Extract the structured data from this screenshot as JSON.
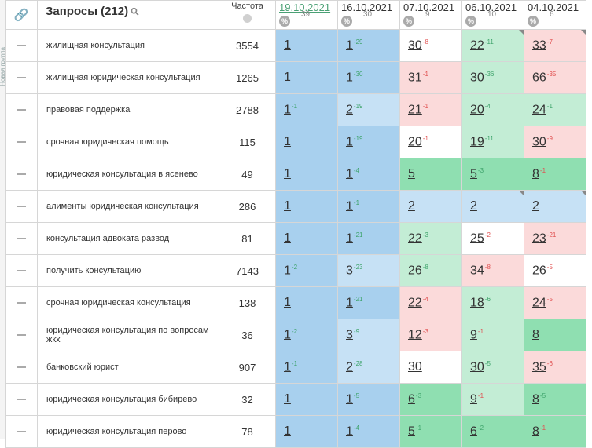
{
  "sidebar": {
    "label": "Новая группа"
  },
  "header": {
    "query_title": "Запросы",
    "query_count": "(212)",
    "freq_label": "Частота",
    "dates": [
      {
        "date": "19.10.2021",
        "count": "39",
        "active": true
      },
      {
        "date": "16.10.2021",
        "count": "30",
        "active": false
      },
      {
        "date": "07.10.2021",
        "count": "9",
        "active": false
      },
      {
        "date": "06.10.2021",
        "count": "10",
        "active": false
      },
      {
        "date": "04.10.2021",
        "count": "6",
        "active": false
      }
    ]
  },
  "colors": {
    "blue": "#a8d0ee",
    "light_blue": "#c6e1f5",
    "green": "#8fdfb1",
    "light_green": "#c3edd5",
    "pink": "#fbdada",
    "delta_up": "#3da36a",
    "delta_down": "#e05050"
  },
  "rows": [
    {
      "query": "жилищная консультация",
      "freq": "3554",
      "cells": [
        {
          "v": "1",
          "d": "",
          "dir": "",
          "bg": "blue",
          "corner": false
        },
        {
          "v": "1",
          "d": "-29",
          "dir": "up",
          "bg": "blue",
          "corner": false
        },
        {
          "v": "30",
          "d": "-8",
          "dir": "down",
          "bg": "white",
          "corner": false
        },
        {
          "v": "22",
          "d": "-11",
          "dir": "up",
          "bg": "lgreen",
          "corner": true
        },
        {
          "v": "33",
          "d": "-7",
          "dir": "down",
          "bg": "pink",
          "corner": true
        }
      ]
    },
    {
      "query": "жилищная юридическая консультация",
      "freq": "1265",
      "cells": [
        {
          "v": "1",
          "d": "",
          "dir": "",
          "bg": "blue",
          "corner": false
        },
        {
          "v": "1",
          "d": "-30",
          "dir": "up",
          "bg": "blue",
          "corner": false
        },
        {
          "v": "31",
          "d": "-1",
          "dir": "down",
          "bg": "pink",
          "corner": false
        },
        {
          "v": "30",
          "d": "-36",
          "dir": "up",
          "bg": "lgreen",
          "corner": false
        },
        {
          "v": "66",
          "d": "-35",
          "dir": "down",
          "bg": "pink",
          "corner": false
        }
      ]
    },
    {
      "query": "правовая поддержка",
      "freq": "2788",
      "cells": [
        {
          "v": "1",
          "d": "-1",
          "dir": "up",
          "bg": "blue",
          "corner": false
        },
        {
          "v": "2",
          "d": "-19",
          "dir": "up",
          "bg": "lblue",
          "corner": false
        },
        {
          "v": "21",
          "d": "-1",
          "dir": "down",
          "bg": "pink",
          "corner": false
        },
        {
          "v": "20",
          "d": "-4",
          "dir": "up",
          "bg": "lgreen",
          "corner": false
        },
        {
          "v": "24",
          "d": "-1",
          "dir": "up",
          "bg": "lgreen",
          "corner": false
        }
      ]
    },
    {
      "query": "срочная юридическая помощь",
      "freq": "115",
      "cells": [
        {
          "v": "1",
          "d": "",
          "dir": "",
          "bg": "blue",
          "corner": false
        },
        {
          "v": "1",
          "d": "-19",
          "dir": "up",
          "bg": "blue",
          "corner": false
        },
        {
          "v": "20",
          "d": "-1",
          "dir": "down",
          "bg": "white",
          "corner": false
        },
        {
          "v": "19",
          "d": "-11",
          "dir": "up",
          "bg": "lgreen",
          "corner": false
        },
        {
          "v": "30",
          "d": "-9",
          "dir": "down",
          "bg": "pink",
          "corner": false
        }
      ]
    },
    {
      "query": "юридическая консультация в ясенево",
      "freq": "49",
      "cells": [
        {
          "v": "1",
          "d": "",
          "dir": "",
          "bg": "blue",
          "corner": false
        },
        {
          "v": "1",
          "d": "-4",
          "dir": "up",
          "bg": "blue",
          "corner": false
        },
        {
          "v": "5",
          "d": "",
          "dir": "",
          "bg": "green",
          "corner": false
        },
        {
          "v": "5",
          "d": "-3",
          "dir": "up",
          "bg": "green",
          "corner": false
        },
        {
          "v": "8",
          "d": "-1",
          "dir": "down",
          "bg": "green",
          "corner": false
        }
      ]
    },
    {
      "query": "алименты юридическая консультация",
      "freq": "286",
      "cells": [
        {
          "v": "1",
          "d": "",
          "dir": "",
          "bg": "blue",
          "corner": false
        },
        {
          "v": "1",
          "d": "-1",
          "dir": "up",
          "bg": "blue",
          "corner": false
        },
        {
          "v": "2",
          "d": "",
          "dir": "",
          "bg": "lblue",
          "corner": false
        },
        {
          "v": "2",
          "d": "",
          "dir": "",
          "bg": "lblue",
          "corner": true
        },
        {
          "v": "2",
          "d": "",
          "dir": "",
          "bg": "lblue",
          "corner": true
        }
      ]
    },
    {
      "query": "консультация адвоката развод",
      "freq": "81",
      "cells": [
        {
          "v": "1",
          "d": "",
          "dir": "",
          "bg": "blue",
          "corner": false
        },
        {
          "v": "1",
          "d": "-21",
          "dir": "up",
          "bg": "blue",
          "corner": false
        },
        {
          "v": "22",
          "d": "-3",
          "dir": "up",
          "bg": "lgreen",
          "corner": false
        },
        {
          "v": "25",
          "d": "-2",
          "dir": "down",
          "bg": "white",
          "corner": false
        },
        {
          "v": "23",
          "d": "-21",
          "dir": "down",
          "bg": "pink",
          "corner": false
        }
      ]
    },
    {
      "query": "получить консультацию",
      "freq": "7143",
      "cells": [
        {
          "v": "1",
          "d": "-2",
          "dir": "up",
          "bg": "blue",
          "corner": false
        },
        {
          "v": "3",
          "d": "-23",
          "dir": "up",
          "bg": "lblue",
          "corner": false
        },
        {
          "v": "26",
          "d": "-8",
          "dir": "up",
          "bg": "lgreen",
          "corner": false
        },
        {
          "v": "34",
          "d": "-8",
          "dir": "down",
          "bg": "pink",
          "corner": false
        },
        {
          "v": "26",
          "d": "-5",
          "dir": "down",
          "bg": "white",
          "corner": false
        }
      ]
    },
    {
      "query": "срочная юридическая консультация",
      "freq": "138",
      "cells": [
        {
          "v": "1",
          "d": "",
          "dir": "",
          "bg": "blue",
          "corner": false
        },
        {
          "v": "1",
          "d": "-21",
          "dir": "up",
          "bg": "blue",
          "corner": false
        },
        {
          "v": "22",
          "d": "-4",
          "dir": "down",
          "bg": "pink",
          "corner": false
        },
        {
          "v": "18",
          "d": "-6",
          "dir": "up",
          "bg": "lgreen",
          "corner": false
        },
        {
          "v": "24",
          "d": "-5",
          "dir": "down",
          "bg": "pink",
          "corner": false
        }
      ]
    },
    {
      "query": "юридическая консультация по вопросам жкх",
      "freq": "36",
      "cells": [
        {
          "v": "1",
          "d": "-2",
          "dir": "up",
          "bg": "blue",
          "corner": false
        },
        {
          "v": "3",
          "d": "-9",
          "dir": "up",
          "bg": "lblue",
          "corner": false
        },
        {
          "v": "12",
          "d": "-3",
          "dir": "down",
          "bg": "pink",
          "corner": false
        },
        {
          "v": "9",
          "d": "-1",
          "dir": "down",
          "bg": "lgreen",
          "corner": false
        },
        {
          "v": "8",
          "d": "",
          "dir": "",
          "bg": "green",
          "corner": false
        }
      ]
    },
    {
      "query": "банковский юрист",
      "freq": "907",
      "cells": [
        {
          "v": "1",
          "d": "-1",
          "dir": "up",
          "bg": "blue",
          "corner": false
        },
        {
          "v": "2",
          "d": "-28",
          "dir": "up",
          "bg": "lblue",
          "corner": false
        },
        {
          "v": "30",
          "d": "",
          "dir": "",
          "bg": "white",
          "corner": false
        },
        {
          "v": "30",
          "d": "-5",
          "dir": "up",
          "bg": "lgreen",
          "corner": false
        },
        {
          "v": "35",
          "d": "-6",
          "dir": "down",
          "bg": "pink",
          "corner": false
        }
      ]
    },
    {
      "query": "юридическая консультация бибирево",
      "freq": "32",
      "cells": [
        {
          "v": "1",
          "d": "",
          "dir": "",
          "bg": "blue",
          "corner": false
        },
        {
          "v": "1",
          "d": "-5",
          "dir": "up",
          "bg": "blue",
          "corner": false
        },
        {
          "v": "6",
          "d": "-3",
          "dir": "up",
          "bg": "green",
          "corner": false
        },
        {
          "v": "9",
          "d": "-1",
          "dir": "down",
          "bg": "lgreen",
          "corner": false
        },
        {
          "v": "8",
          "d": "-5",
          "dir": "up",
          "bg": "green",
          "corner": false
        }
      ]
    },
    {
      "query": "юридическая консультация перово",
      "freq": "78",
      "cells": [
        {
          "v": "1",
          "d": "",
          "dir": "",
          "bg": "blue",
          "corner": false
        },
        {
          "v": "1",
          "d": "-4",
          "dir": "up",
          "bg": "blue",
          "corner": false
        },
        {
          "v": "5",
          "d": "-1",
          "dir": "up",
          "bg": "green",
          "corner": false
        },
        {
          "v": "6",
          "d": "-2",
          "dir": "up",
          "bg": "green",
          "corner": false
        },
        {
          "v": "8",
          "d": "-1",
          "dir": "down",
          "bg": "green",
          "corner": false
        }
      ]
    }
  ]
}
